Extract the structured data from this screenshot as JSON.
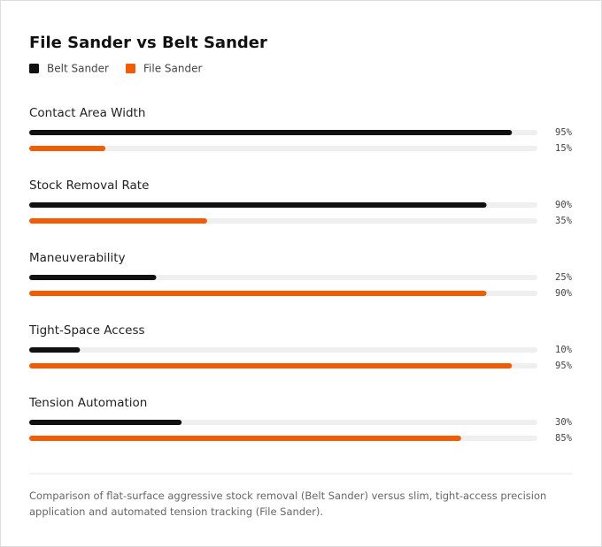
{
  "chart_data": {
    "type": "bar",
    "orientation": "horizontal",
    "title": "File Sander vs Belt Sander",
    "categories": [
      "Contact Area Width",
      "Stock Removal Rate",
      "Maneuverability",
      "Tight-Space Access",
      "Tension Automation"
    ],
    "series": [
      {
        "name": "Belt Sander",
        "color": "#111111",
        "values": [
          95,
          90,
          25,
          10,
          30
        ],
        "value_labels": [
          "95%",
          "90%",
          "25%",
          "10%",
          "30%"
        ]
      },
      {
        "name": "File Sander",
        "color": "#f25c05",
        "values": [
          15,
          35,
          90,
          95,
          85
        ],
        "value_labels": [
          "15%",
          "35%",
          "90%",
          "95%",
          "85%"
        ]
      }
    ],
    "xlim": [
      0,
      100
    ],
    "caption": "Comparison of flat-surface aggressive stock removal (Belt Sander) versus slim, tight-access precision application and automated tension tracking (File Sander)."
  }
}
